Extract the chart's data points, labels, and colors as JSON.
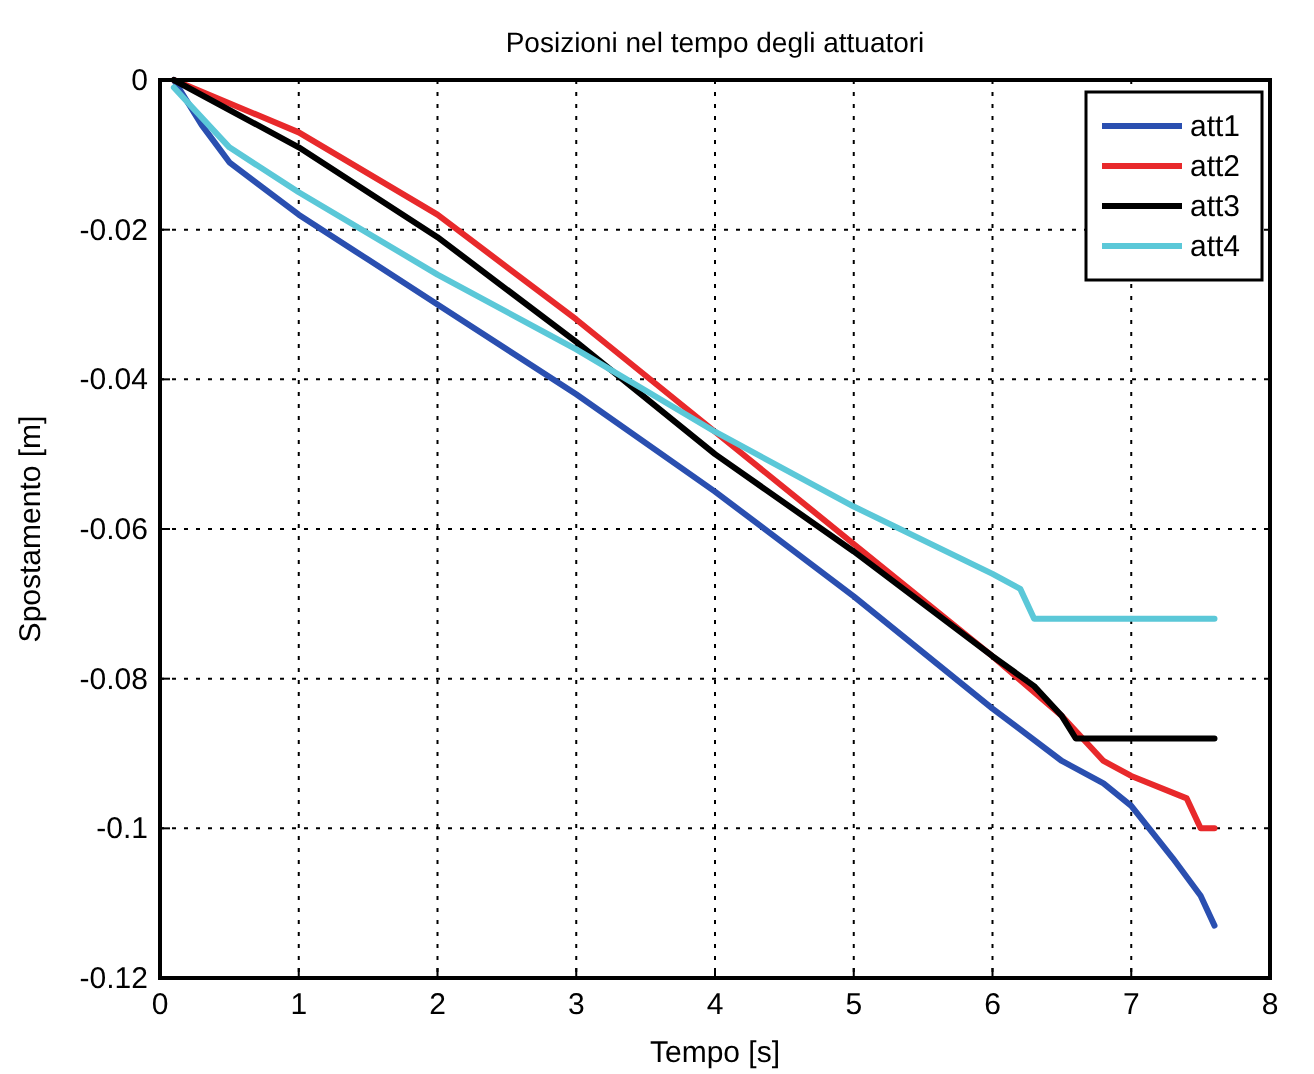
{
  "chart_data": {
    "type": "line",
    "title": "Posizioni nel tempo degli attuatori",
    "xlabel": "Tempo [s]",
    "ylabel": "Spostamento [m]",
    "xlim": [
      0,
      8
    ],
    "xticks": [
      0,
      1,
      2,
      3,
      4,
      5,
      6,
      7,
      8
    ],
    "ylim": [
      -0.12,
      0
    ],
    "yticks": [
      -0.12,
      -0.1,
      -0.08,
      -0.06,
      -0.04,
      -0.02,
      0
    ],
    "grid": true,
    "legend": "top right",
    "line_style": "solid",
    "series": [
      {
        "name": "att1",
        "color": "#2a4fb0",
        "x": [
          0.1,
          0.3,
          0.5,
          1,
          1.5,
          2,
          3,
          4,
          5,
          6,
          6.5,
          6.8,
          7,
          7.3,
          7.5,
          7.6
        ],
        "values": [
          0,
          -0.006,
          -0.011,
          -0.018,
          -0.024,
          -0.03,
          -0.042,
          -0.055,
          -0.069,
          -0.084,
          -0.091,
          -0.094,
          -0.097,
          -0.104,
          -0.109,
          -0.113
        ]
      },
      {
        "name": "att2",
        "color": "#e8292b",
        "x": [
          0.1,
          1,
          2,
          3,
          4,
          5,
          6,
          6.5,
          6.8,
          7,
          7.4,
          7.5,
          7.6
        ],
        "values": [
          0,
          -0.007,
          -0.018,
          -0.032,
          -0.047,
          -0.062,
          -0.077,
          -0.085,
          -0.091,
          -0.093,
          -0.096,
          -0.1,
          -0.1
        ]
      },
      {
        "name": "att3",
        "color": "#000000",
        "x": [
          0.1,
          1,
          2,
          3,
          4,
          5,
          6,
          6.3,
          6.5,
          6.6,
          7.6
        ],
        "values": [
          0,
          -0.009,
          -0.021,
          -0.035,
          -0.05,
          -0.063,
          -0.077,
          -0.081,
          -0.085,
          -0.088,
          -0.088
        ]
      },
      {
        "name": "att4",
        "color": "#5bc8d8",
        "x": [
          0.1,
          0.5,
          1,
          2,
          3,
          4,
          5,
          6,
          6.2,
          6.3,
          7.6
        ],
        "values": [
          -0.001,
          -0.009,
          -0.015,
          -0.026,
          -0.036,
          -0.047,
          -0.057,
          -0.066,
          -0.068,
          -0.072,
          -0.072
        ]
      }
    ]
  }
}
